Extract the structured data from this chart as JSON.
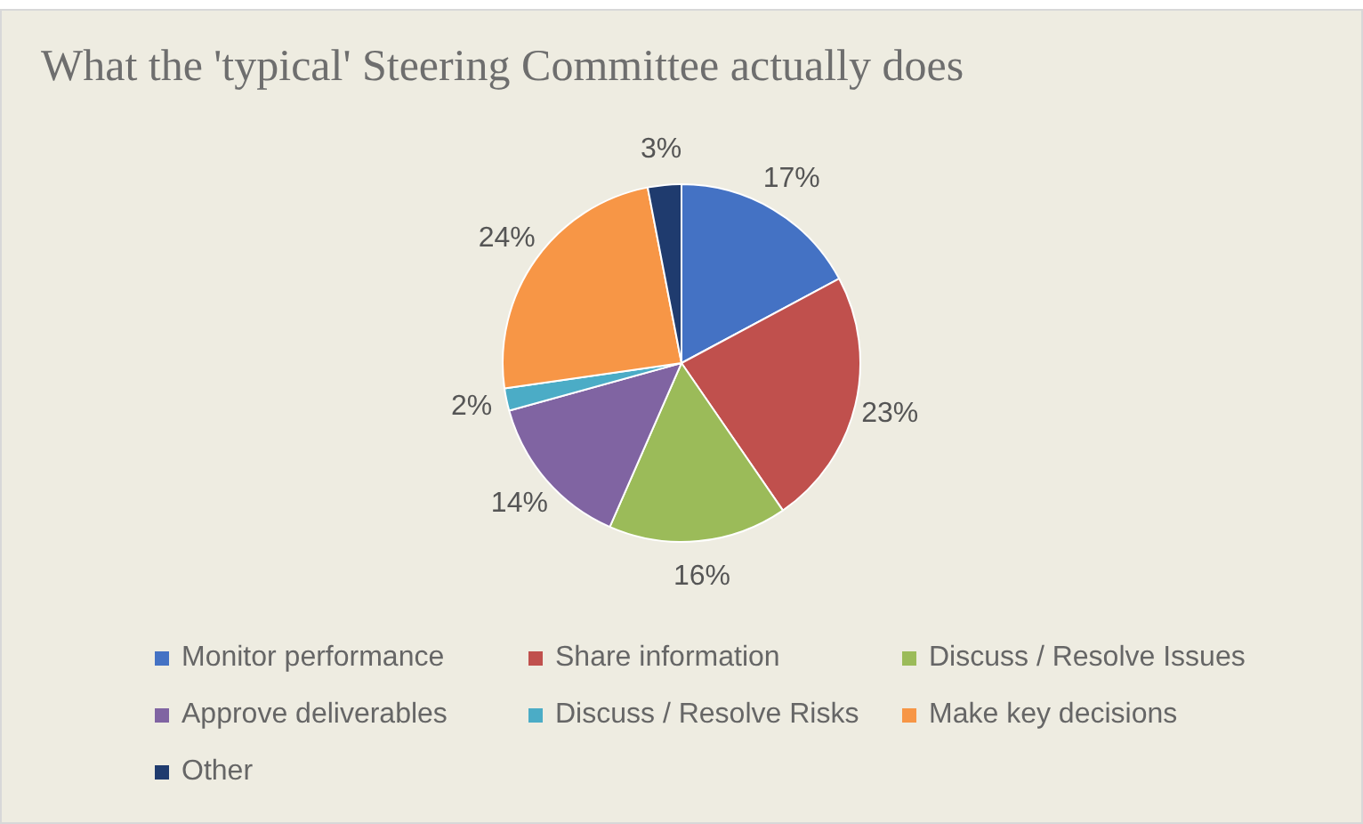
{
  "chart_data": {
    "type": "pie",
    "title": "What the 'typical' Steering Committee actually does",
    "categories": [
      "Monitor performance",
      "Share information",
      "Discuss / Resolve Issues",
      "Approve deliverables",
      "Discuss / Resolve Risks",
      "Make key decisions",
      "Other"
    ],
    "values": [
      17,
      23,
      16,
      14,
      2,
      24,
      3
    ],
    "value_labels": [
      "17%",
      "23%",
      "16%",
      "14%",
      "2%",
      "24%",
      "3%"
    ],
    "colors": [
      "#4472c4",
      "#c0504d",
      "#9bbb59",
      "#8064a2",
      "#4bacc6",
      "#f79646",
      "#1f3b6e"
    ],
    "legend": "bottom"
  }
}
